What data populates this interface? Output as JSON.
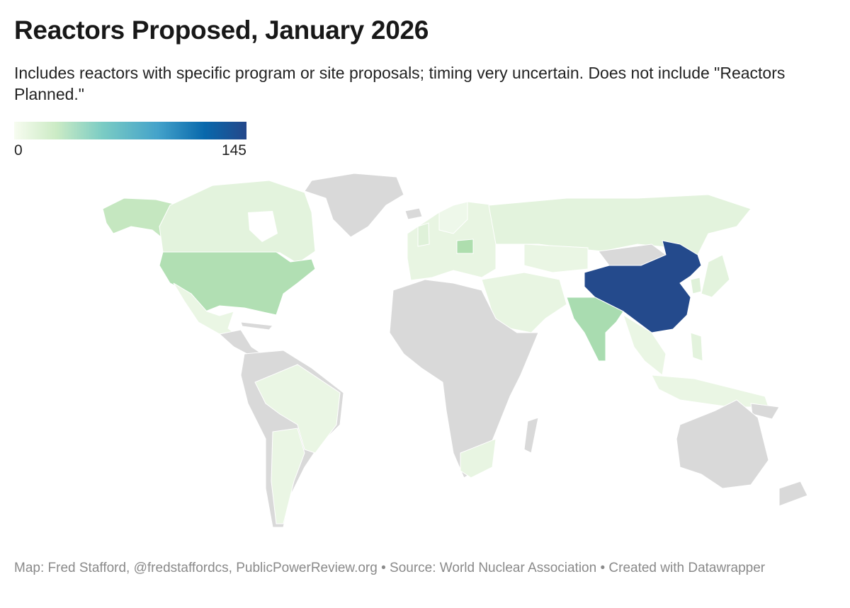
{
  "header": {
    "title": "Reactors Proposed, January 2026",
    "subtitle": "Includes reactors with specific program or site proposals; timing very uncertain. Does not include \"Reactors Planned.\""
  },
  "legend": {
    "min_label": "0",
    "max_label": "145",
    "scale_colors": [
      "#f7fcf0",
      "#ccebc5",
      "#7bccc4",
      "#43a2ca",
      "#0868ac",
      "#24478a"
    ]
  },
  "map": {
    "no_data_color": "#d9d9d9",
    "highlight_color": "#244a8c"
  },
  "footer": {
    "credit": "Map: Fred Stafford, @fredstaffordcs, PublicPowerReview.org • Source: World Nuclear Association • Created with Datawrapper"
  }
}
